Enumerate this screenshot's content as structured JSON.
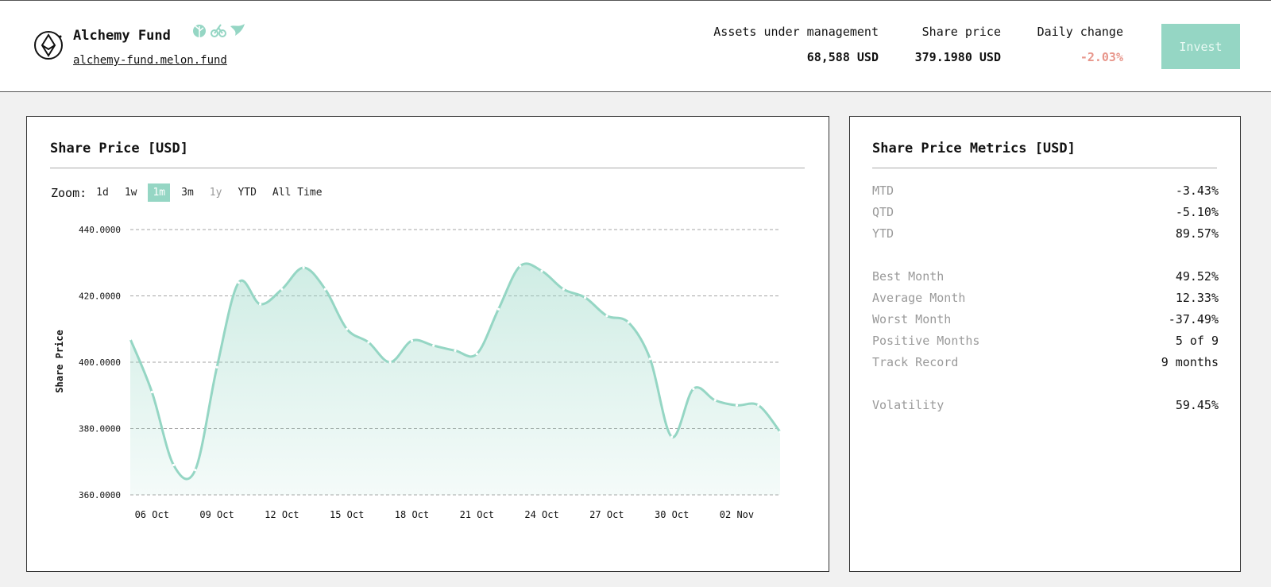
{
  "header": {
    "fund_name": "Alchemy Fund",
    "fund_url": "alchemy-fund.melon.fund",
    "badges": [
      "plant-badge-icon",
      "bicycle-badge-icon",
      "bird-badge-icon"
    ],
    "stats": {
      "aum_label": "Assets under management",
      "aum_value": "68,588 USD",
      "price_label": "Share price",
      "price_value": "379.1980 USD",
      "change_label": "Daily change",
      "change_value": "-2.03%"
    },
    "invest_label": "Invest"
  },
  "chart_panel": {
    "title": "Share Price [USD]",
    "zoom_label": "Zoom:",
    "zoom_options": [
      {
        "label": "1d",
        "state": "normal"
      },
      {
        "label": "1w",
        "state": "normal"
      },
      {
        "label": "1m",
        "state": "active"
      },
      {
        "label": "3m",
        "state": "normal"
      },
      {
        "label": "1y",
        "state": "disabled"
      },
      {
        "label": "YTD",
        "state": "normal"
      },
      {
        "label": "All Time",
        "state": "normal"
      }
    ]
  },
  "chart_data": {
    "type": "area",
    "title": "",
    "xlabel": "",
    "ylabel": "Share Price",
    "ylim": [
      360,
      440
    ],
    "yticks": [
      "360.0000",
      "380.0000",
      "400.0000",
      "420.0000",
      "440.0000"
    ],
    "xtick_labels": [
      "06 Oct",
      "09 Oct",
      "12 Oct",
      "15 Oct",
      "18 Oct",
      "21 Oct",
      "24 Oct",
      "27 Oct",
      "30 Oct",
      "02 Nov"
    ],
    "x_range": [
      "05 Oct",
      "04 Nov"
    ],
    "grid": true,
    "color": "#95d6c4",
    "series": [
      {
        "x": [
          "05 Oct",
          "06 Oct",
          "07 Oct",
          "08 Oct",
          "09 Oct",
          "10 Oct",
          "11 Oct",
          "12 Oct",
          "13 Oct",
          "14 Oct",
          "15 Oct",
          "16 Oct",
          "17 Oct",
          "18 Oct",
          "19 Oct",
          "20 Oct",
          "21 Oct",
          "22 Oct",
          "23 Oct",
          "24 Oct",
          "25 Oct",
          "26 Oct",
          "27 Oct",
          "28 Oct",
          "29 Oct",
          "30 Oct",
          "31 Oct",
          "01 Nov",
          "02 Nov",
          "03 Nov",
          "04 Nov"
        ],
        "values": [
          407,
          391,
          369,
          367.5,
          398.5,
          424,
          417.5,
          422,
          428.5,
          422,
          410,
          406,
          400,
          406.5,
          405,
          403.5,
          402.5,
          416,
          429,
          427.5,
          422,
          419.5,
          414,
          412,
          401,
          377.5,
          392,
          388.5,
          387,
          387,
          379
        ]
      }
    ]
  },
  "metrics_panel": {
    "title": "Share Price Metrics [USD]",
    "groups": [
      [
        {
          "label": "MTD",
          "value": "-3.43%"
        },
        {
          "label": "QTD",
          "value": "-5.10%"
        },
        {
          "label": "YTD",
          "value": "89.57%"
        }
      ],
      [
        {
          "label": "Best Month",
          "value": "49.52%"
        },
        {
          "label": "Average Month",
          "value": "12.33%"
        },
        {
          "label": "Worst Month",
          "value": "-37.49%"
        },
        {
          "label": "Positive Months",
          "value": "5 of 9"
        },
        {
          "label": "Track Record",
          "value": "9 months"
        }
      ],
      [
        {
          "label": "Volatility",
          "value": "59.45%"
        }
      ]
    ]
  }
}
